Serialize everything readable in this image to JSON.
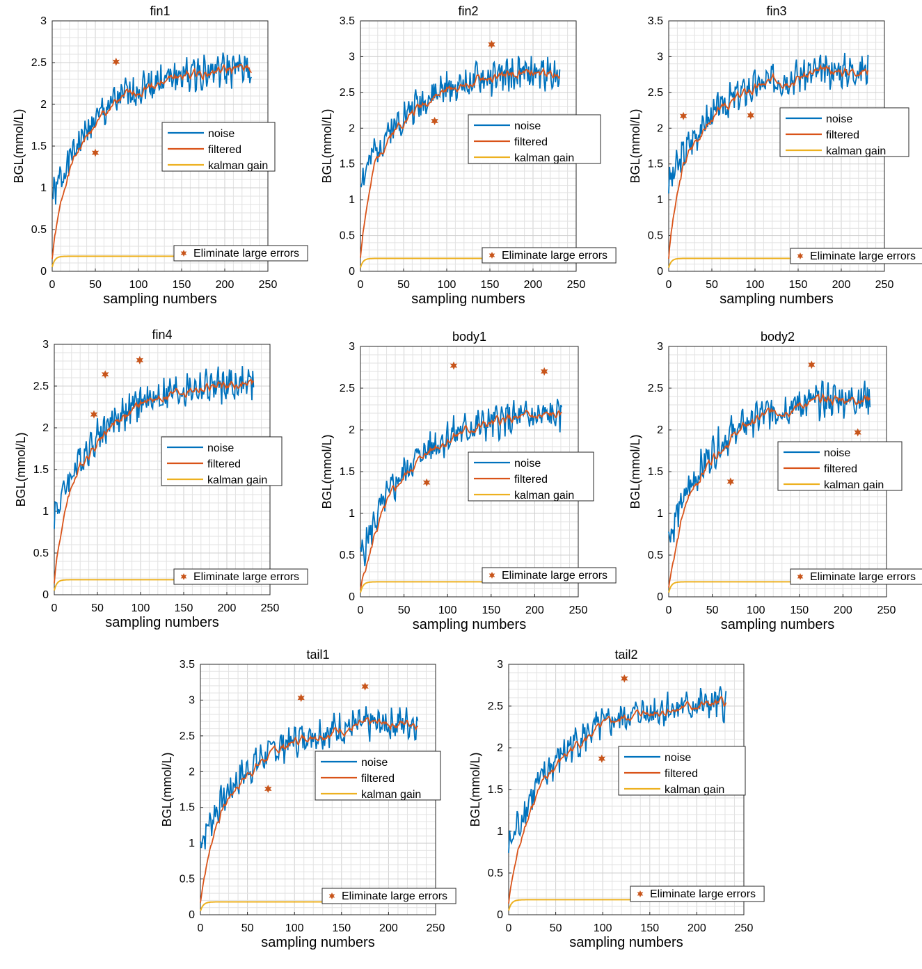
{
  "colors": {
    "noise": "#0072BD",
    "filtered": "#D95319",
    "gain": "#EDB120",
    "marker": "#C8551B"
  },
  "chart_data": [
    {
      "type": "line",
      "title": "fin1",
      "xlabel": "sampling numbers",
      "ylabel": "BGL(mmol/L)",
      "xlim": [
        0,
        250
      ],
      "ylim": [
        0,
        3
      ],
      "xticks": [
        "0",
        "50",
        "100",
        "150",
        "200",
        "250"
      ],
      "yticks": [
        "0",
        "0.5",
        "1",
        "1.5",
        "2",
        "2.5",
        "3"
      ],
      "x_start": 0,
      "x_end": 231,
      "start": 0.85,
      "plateau": 2.45,
      "filter_start": 0.05,
      "gain": 0.18,
      "amp": 0.18,
      "seed": 1,
      "legend": [
        "noise",
        "filtered",
        "kalman gain"
      ],
      "annotation": "Eliminate large errors",
      "markers": [
        {
          "x": 50,
          "y": 1.42
        },
        {
          "x": 74,
          "y": 2.51
        }
      ]
    },
    {
      "type": "line",
      "title": "fin2",
      "xlabel": "sampling numbers",
      "ylabel": "BGL(mmol/L)",
      "xlim": [
        0,
        250
      ],
      "ylim": [
        0,
        3.5
      ],
      "xticks": [
        "0",
        "50",
        "100",
        "150",
        "200",
        "250"
      ],
      "yticks": [
        "0",
        "0.5",
        "1",
        "1.5",
        "2",
        "2.5",
        "3",
        "3.5"
      ],
      "x_start": 0,
      "x_end": 231,
      "start": 1.25,
      "plateau": 2.8,
      "filter_start": 0.05,
      "gain": 0.18,
      "amp": 0.2,
      "seed": 2,
      "legend": [
        "noise",
        "filtered",
        "kalman gain"
      ],
      "annotation": "Eliminate large errors",
      "markers": [
        {
          "x": 86,
          "y": 2.1
        },
        {
          "x": 152,
          "y": 3.17
        }
      ]
    },
    {
      "type": "line",
      "title": "fin3",
      "xlabel": "sampling numbers",
      "ylabel": "BGL(mmol/L)",
      "xlim": [
        0,
        250
      ],
      "ylim": [
        0,
        3.5
      ],
      "xticks": [
        "0",
        "50",
        "100",
        "150",
        "200",
        "250"
      ],
      "yticks": [
        "0",
        "0.5",
        "1",
        "1.5",
        "2",
        "2.5",
        "3",
        "3.5"
      ],
      "x_start": 0,
      "x_end": 231,
      "start": 1.2,
      "plateau": 2.85,
      "filter_start": 0.05,
      "gain": 0.18,
      "amp": 0.2,
      "seed": 3,
      "legend": [
        "noise",
        "filtered",
        "kalman gain"
      ],
      "annotation": "Eliminate large errors",
      "markers": [
        {
          "x": 17,
          "y": 2.17
        },
        {
          "x": 95,
          "y": 2.18
        }
      ]
    },
    {
      "type": "line",
      "title": "fin4",
      "xlabel": "sampling numbers",
      "ylabel": "BGL(mmol/L)",
      "xlim": [
        0,
        250
      ],
      "ylim": [
        0,
        3
      ],
      "xticks": [
        "0",
        "50",
        "100",
        "150",
        "200",
        "250"
      ],
      "yticks": [
        "0",
        "0.5",
        "1",
        "1.5",
        "2",
        "2.5",
        "3"
      ],
      "x_start": 0,
      "x_end": 231,
      "start": 0.95,
      "plateau": 2.55,
      "filter_start": 0.05,
      "gain": 0.18,
      "amp": 0.18,
      "seed": 4,
      "legend": [
        "noise",
        "filtered",
        "kalman gain"
      ],
      "annotation": "Eliminate large errors",
      "markers": [
        {
          "x": 46,
          "y": 2.16
        },
        {
          "x": 59,
          "y": 2.64
        },
        {
          "x": 99,
          "y": 2.81
        }
      ]
    },
    {
      "type": "line",
      "title": "body1",
      "xlabel": "sampling numbers",
      "ylabel": "BGL(mmol/L)",
      "xlim": [
        0,
        250
      ],
      "ylim": [
        0,
        3
      ],
      "xticks": [
        "0",
        "50",
        "100",
        "150",
        "200",
        "250"
      ],
      "yticks": [
        "0",
        "0.5",
        "1",
        "1.5",
        "2",
        "2.5",
        "3"
      ],
      "x_start": 0,
      "x_end": 231,
      "start": 0.45,
      "plateau": 2.2,
      "filter_start": 0.02,
      "gain": 0.18,
      "amp": 0.18,
      "seed": 5,
      "legend": [
        "noise",
        "filtered",
        "kalman gain"
      ],
      "annotation": "Eliminate large errors",
      "markers": [
        {
          "x": 76,
          "y": 1.37
        },
        {
          "x": 107,
          "y": 2.77
        },
        {
          "x": 211,
          "y": 2.7
        }
      ]
    },
    {
      "type": "line",
      "title": "body2",
      "xlabel": "sampling numbers",
      "ylabel": "BGL(mmol/L)",
      "xlim": [
        0,
        250
      ],
      "ylim": [
        0,
        3
      ],
      "xticks": [
        "0",
        "50",
        "100",
        "150",
        "200",
        "250"
      ],
      "yticks": [
        "0",
        "0.5",
        "1",
        "1.5",
        "2",
        "2.5",
        "3"
      ],
      "x_start": 0,
      "x_end": 231,
      "start": 0.7,
      "plateau": 2.42,
      "filter_start": 0.02,
      "gain": 0.18,
      "amp": 0.18,
      "seed": 6,
      "legend": [
        "noise",
        "filtered",
        "kalman gain"
      ],
      "annotation": "Eliminate large errors",
      "markers": [
        {
          "x": 71,
          "y": 1.38
        },
        {
          "x": 164,
          "y": 2.78
        },
        {
          "x": 217,
          "y": 1.97
        }
      ]
    },
    {
      "type": "line",
      "title": "tail1",
      "xlabel": "sampling numbers",
      "ylabel": "BGL(mmol/L)",
      "xlim": [
        0,
        250
      ],
      "ylim": [
        0,
        3.5
      ],
      "xticks": [
        "0",
        "50",
        "100",
        "150",
        "200",
        "250"
      ],
      "yticks": [
        "0",
        "0.5",
        "1",
        "1.5",
        "2",
        "2.5",
        "3",
        "3.5"
      ],
      "x_start": 0,
      "x_end": 231,
      "start": 1.0,
      "plateau": 2.72,
      "filter_start": 0.05,
      "gain": 0.18,
      "amp": 0.2,
      "seed": 7,
      "legend": [
        "noise",
        "filtered",
        "kalman gain"
      ],
      "annotation": "Eliminate large errors",
      "markers": [
        {
          "x": 72,
          "y": 1.76
        },
        {
          "x": 107,
          "y": 3.03
        },
        {
          "x": 175,
          "y": 3.19
        }
      ]
    },
    {
      "type": "line",
      "title": "tail2",
      "xlabel": "sampling numbers",
      "ylabel": "BGL(mmol/L)",
      "xlim": [
        0,
        250
      ],
      "ylim": [
        0,
        3
      ],
      "xticks": [
        "0",
        "50",
        "100",
        "150",
        "200",
        "250"
      ],
      "yticks": [
        "0",
        "0.5",
        "1",
        "1.5",
        "2",
        "2.5",
        "3"
      ],
      "x_start": 0,
      "x_end": 231,
      "start": 0.78,
      "plateau": 2.55,
      "filter_start": 0.05,
      "gain": 0.18,
      "amp": 0.18,
      "seed": 8,
      "legend": [
        "noise",
        "filtered",
        "kalman gain"
      ],
      "annotation": "Eliminate large errors",
      "markers": [
        {
          "x": 99,
          "y": 1.87
        },
        {
          "x": 123,
          "y": 2.83
        }
      ]
    }
  ]
}
